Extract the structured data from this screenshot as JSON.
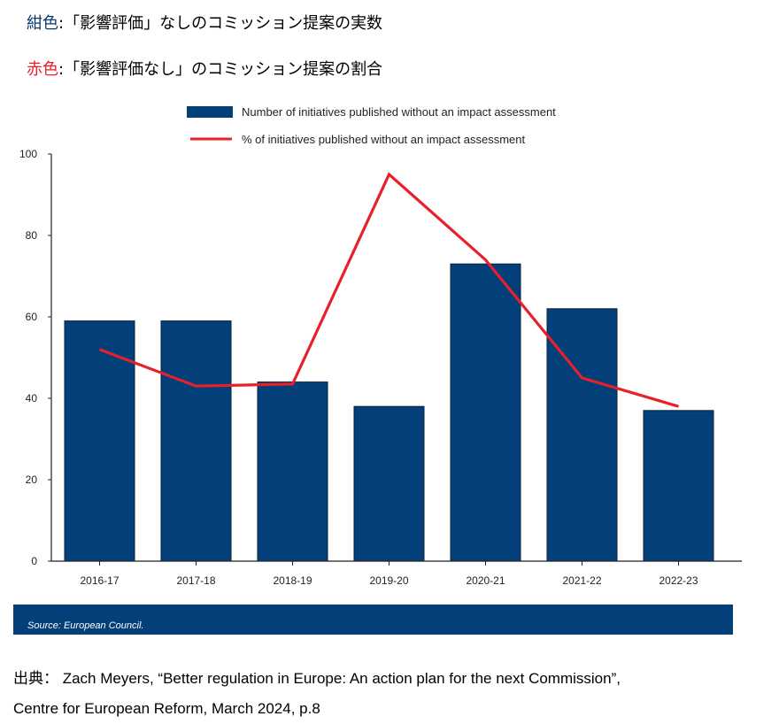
{
  "notes": {
    "navy_label": "紺色",
    "navy_text": ":「影響評価」なしのコミッション提案の実数",
    "red_label": "赤色",
    "red_text": ":「影響評価なし」のコミッション提案の割合"
  },
  "colors": {
    "navy": "#03407a",
    "red": "#e8202a",
    "axis": "#222222"
  },
  "chart_data": {
    "type": "bar",
    "categories": [
      "2016-17",
      "2017-18",
      "2018-19",
      "2019-20",
      "2020-21",
      "2021-22",
      "2022-23"
    ],
    "series": [
      {
        "name": "Number of initiatives published without an impact assessment",
        "type": "bar",
        "values": [
          59,
          59,
          44,
          38,
          73,
          62,
          37
        ]
      },
      {
        "name": "% of initiatives published without an impact assessment",
        "type": "line",
        "values": [
          52,
          43,
          43.5,
          95,
          74,
          45,
          38
        ]
      }
    ],
    "ylim": [
      0,
      100
    ],
    "yticks": [
      0,
      20,
      40,
      60,
      80,
      100
    ],
    "xlabel": "",
    "ylabel": "",
    "legend_position": "top"
  },
  "source": "Source: European Council.",
  "citation": {
    "line1": "出典：  Zach Meyers, “Better regulation in Europe: An action plan for the next Commission”,",
    "line2": "Centre for European Reform, March 2024, p.8"
  }
}
